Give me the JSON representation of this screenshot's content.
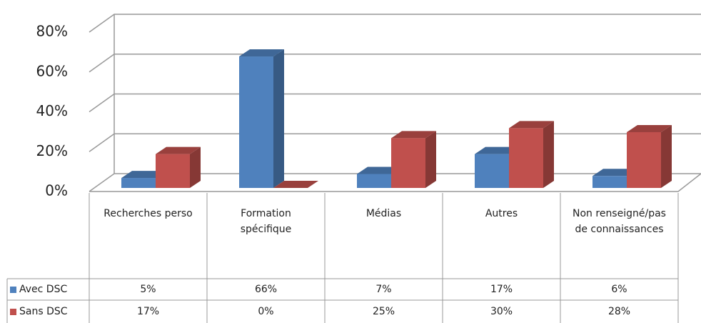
{
  "chart_data": {
    "type": "bar3d",
    "categories": [
      "Recherches perso",
      "Formation spécifique",
      "Médias",
      "Autres",
      "Non renseigné/pas de connaissances"
    ],
    "series": [
      {
        "name": "Avec DSC",
        "color": "#4f81bd",
        "values": [
          5,
          66,
          7,
          17,
          6
        ],
        "value_labels": [
          "5%",
          "66%",
          "7%",
          "17%",
          "6%"
        ]
      },
      {
        "name": "Sans DSC",
        "color": "#c0504d",
        "values": [
          17,
          0,
          25,
          30,
          28
        ],
        "value_labels": [
          "17%",
          "0%",
          "25%",
          "30%",
          "28%"
        ]
      }
    ],
    "ylim": [
      0,
      80
    ],
    "yticks": [
      {
        "value": 0,
        "label": "0%"
      },
      {
        "value": 20,
        "label": "20%"
      },
      {
        "value": 40,
        "label": "40%"
      },
      {
        "value": 60,
        "label": "60%"
      },
      {
        "value": 80,
        "label": "80%"
      }
    ],
    "grid": true,
    "data_table": true
  }
}
